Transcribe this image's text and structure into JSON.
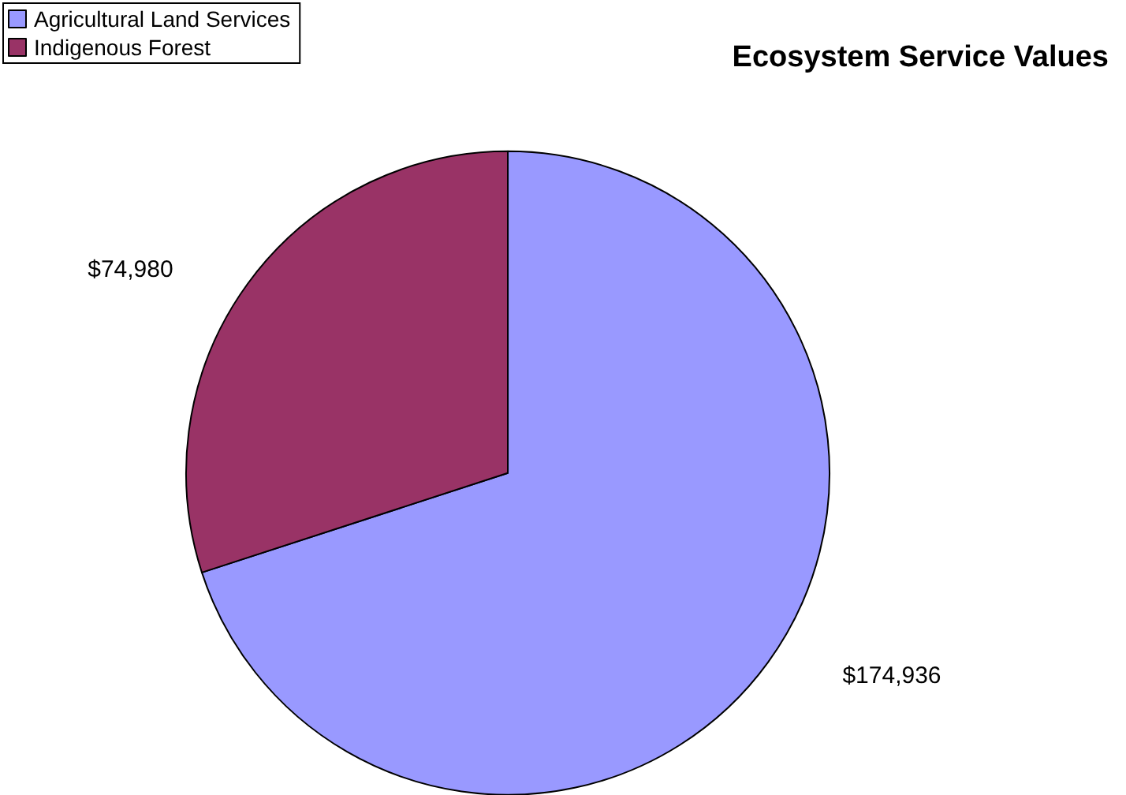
{
  "chart_data": {
    "type": "pie",
    "title": "Ecosystem Service Values",
    "categories": [
      "Agricultural Land Services",
      "Indigenous Forest"
    ],
    "values": [
      174936,
      74980
    ],
    "colors": [
      "#9999ff",
      "#993366"
    ],
    "value_labels": [
      "$174,936",
      "$74,980"
    ],
    "legend": "top left"
  }
}
